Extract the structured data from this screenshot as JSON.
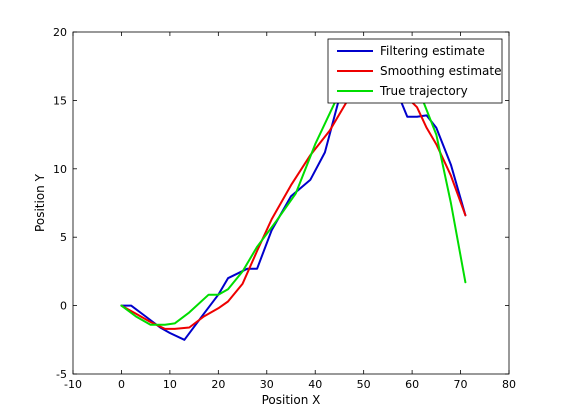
{
  "chart_data": {
    "type": "line",
    "title": "",
    "xlabel": "Position X",
    "ylabel": "Position Y",
    "xlim": [
      -10,
      80
    ],
    "ylim": [
      -5,
      20
    ],
    "xticks": [
      -10,
      0,
      10,
      20,
      30,
      40,
      50,
      60,
      70,
      80
    ],
    "yticks": [
      -5,
      0,
      5,
      10,
      15,
      20
    ],
    "grid": false,
    "legend_position": "top-right",
    "series": [
      {
        "name": "Filtering estimate",
        "color": "#0000cc",
        "x": [
          0,
          2,
          5,
          8,
          10,
          13,
          17,
          20,
          22,
          26,
          28,
          31,
          35,
          39,
          42,
          45,
          48,
          50,
          53,
          56,
          59,
          61,
          63,
          65,
          68,
          71
        ],
        "y": [
          0,
          0,
          -0.8,
          -1.6,
          -2.0,
          -2.5,
          -0.6,
          0.8,
          2.0,
          2.7,
          2.7,
          5.5,
          8.0,
          9.2,
          11.2,
          15.2,
          17.0,
          17.6,
          17.9,
          16.4,
          13.8,
          13.8,
          13.9,
          13.0,
          10.3,
          6.6
        ]
      },
      {
        "name": "Smoothing estimate",
        "color": "#ee0000",
        "x": [
          0,
          3,
          6,
          9,
          11,
          14,
          17,
          20,
          22,
          25,
          28,
          31,
          35,
          39,
          43,
          47,
          50,
          53,
          56,
          59,
          61,
          63,
          65,
          68,
          71
        ],
        "y": [
          0,
          -0.6,
          -1.2,
          -1.7,
          -1.7,
          -1.6,
          -0.8,
          -0.2,
          0.3,
          1.6,
          4.0,
          6.3,
          8.8,
          11.0,
          12.8,
          15.2,
          17.3,
          17.6,
          16.6,
          15.2,
          14.5,
          13.0,
          11.8,
          9.5,
          6.6
        ]
      },
      {
        "name": "True trajectory",
        "color": "#00dd00",
        "x": [
          0,
          3,
          6,
          9,
          11,
          14,
          18,
          20,
          22,
          25,
          28,
          32,
          36,
          40,
          44,
          47,
          50,
          53,
          56,
          59,
          62,
          65,
          68,
          71
        ],
        "y": [
          0,
          -0.8,
          -1.4,
          -1.4,
          -1.3,
          -0.5,
          0.8,
          0.8,
          1.2,
          2.5,
          4.3,
          6.2,
          8.2,
          11.8,
          14.8,
          16.8,
          17.7,
          17.8,
          17.0,
          15.8,
          15.2,
          12.5,
          7.5,
          1.7
        ]
      }
    ]
  }
}
